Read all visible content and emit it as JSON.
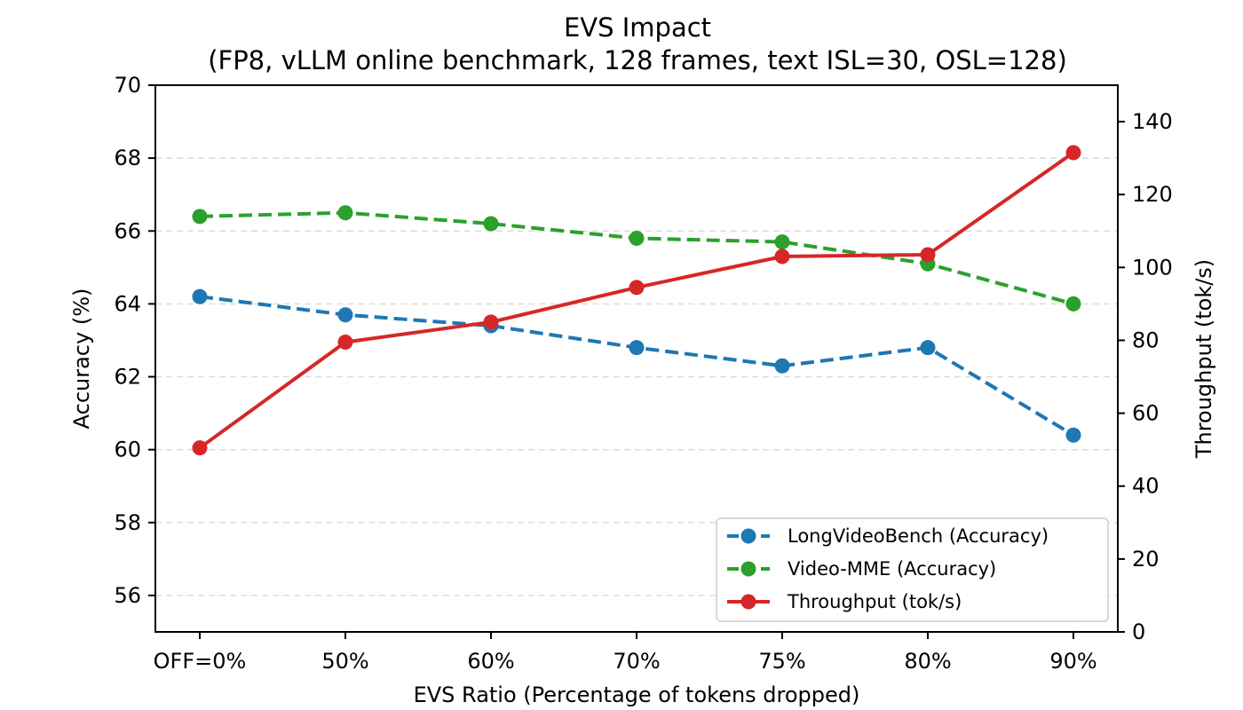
{
  "chart_data": {
    "type": "line",
    "title": "EVS Impact",
    "subtitle": "(FP8, vLLM online benchmark, 128 frames, text ISL=30, OSL=128)",
    "xlabel": "EVS Ratio (Percentage of tokens dropped)",
    "ylabel": "Accuracy (%)",
    "y2label": "Throughput (tok/s)",
    "categories": [
      "OFF=0%",
      "50%",
      "60%",
      "70%",
      "75%",
      "80%",
      "90%"
    ],
    "ylim": [
      55,
      70
    ],
    "yticks": [
      56,
      58,
      60,
      62,
      64,
      66,
      68,
      70
    ],
    "y2lim": [
      0,
      150
    ],
    "y2ticks": [
      0,
      20,
      40,
      60,
      80,
      100,
      120,
      140
    ],
    "grid": "y-dashed",
    "legend_position": "lower-right",
    "series": [
      {
        "name": "LongVideoBench (Accuracy)",
        "axis": "left",
        "style": "dashed",
        "color": "#1f77b4",
        "values": [
          64.2,
          63.7,
          63.4,
          62.8,
          62.3,
          62.8,
          60.4
        ]
      },
      {
        "name": "Video-MME (Accuracy)",
        "axis": "left",
        "style": "dashed",
        "color": "#2ca02c",
        "values": [
          66.4,
          66.5,
          66.2,
          65.8,
          65.7,
          65.1,
          64.0
        ]
      },
      {
        "name": "Throughput (tok/s)",
        "axis": "right",
        "style": "solid",
        "color": "#d62728",
        "values": [
          50.5,
          79.5,
          85.0,
          94.5,
          103.0,
          103.5,
          131.5
        ]
      }
    ]
  }
}
